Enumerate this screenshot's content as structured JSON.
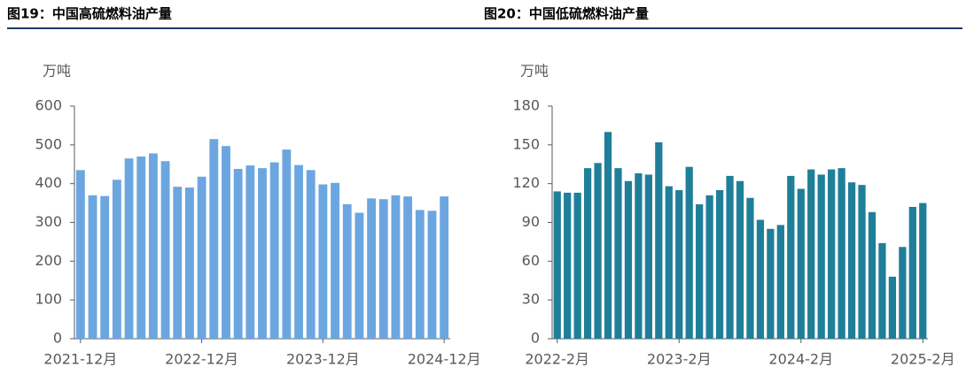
{
  "chart_data": [
    {
      "type": "bar",
      "title": "图19：中国高硫燃料油产量",
      "y_label": "万吨",
      "categories": [
        "2021-12月",
        null,
        null,
        null,
        null,
        null,
        null,
        null,
        null,
        null,
        "2022-12月",
        null,
        null,
        null,
        null,
        null,
        null,
        null,
        null,
        null,
        "2023-12月",
        null,
        null,
        null,
        null,
        null,
        null,
        null,
        null,
        null,
        "2024-12月"
      ],
      "values": [
        435,
        370,
        368,
        410,
        465,
        470,
        478,
        458,
        392,
        390,
        418,
        515,
        497,
        438,
        447,
        440,
        455,
        488,
        448,
        435,
        398,
        402,
        347,
        325,
        362,
        360,
        370,
        367,
        332,
        330,
        367
      ],
      "color": "#6ca6e0",
      "ylim": [
        0,
        600
      ],
      "yticks": [
        0,
        100,
        200,
        300,
        400,
        500,
        600
      ]
    },
    {
      "type": "bar",
      "title": "图20：中国低硫燃料油产量",
      "y_label": "万吨",
      "categories": [
        "2022-2月",
        null,
        null,
        null,
        null,
        null,
        null,
        null,
        null,
        null,
        null,
        null,
        "2023-2月",
        null,
        null,
        null,
        null,
        null,
        null,
        null,
        null,
        null,
        null,
        null,
        "2024-2月",
        null,
        null,
        null,
        null,
        null,
        null,
        null,
        null,
        null,
        null,
        null,
        "2025-2月"
      ],
      "values": [
        114,
        113,
        113,
        132,
        136,
        160,
        132,
        122,
        128,
        127,
        152,
        118,
        115,
        133,
        104,
        111,
        115,
        126,
        122,
        109,
        92,
        85,
        88,
        126,
        116,
        131,
        127,
        131,
        132,
        121,
        119,
        98,
        74,
        48,
        71,
        102,
        105
      ],
      "color": "#1f7f99",
      "ylim": [
        0,
        180
      ],
      "yticks": [
        0,
        30,
        60,
        90,
        120,
        150,
        180
      ]
    }
  ]
}
